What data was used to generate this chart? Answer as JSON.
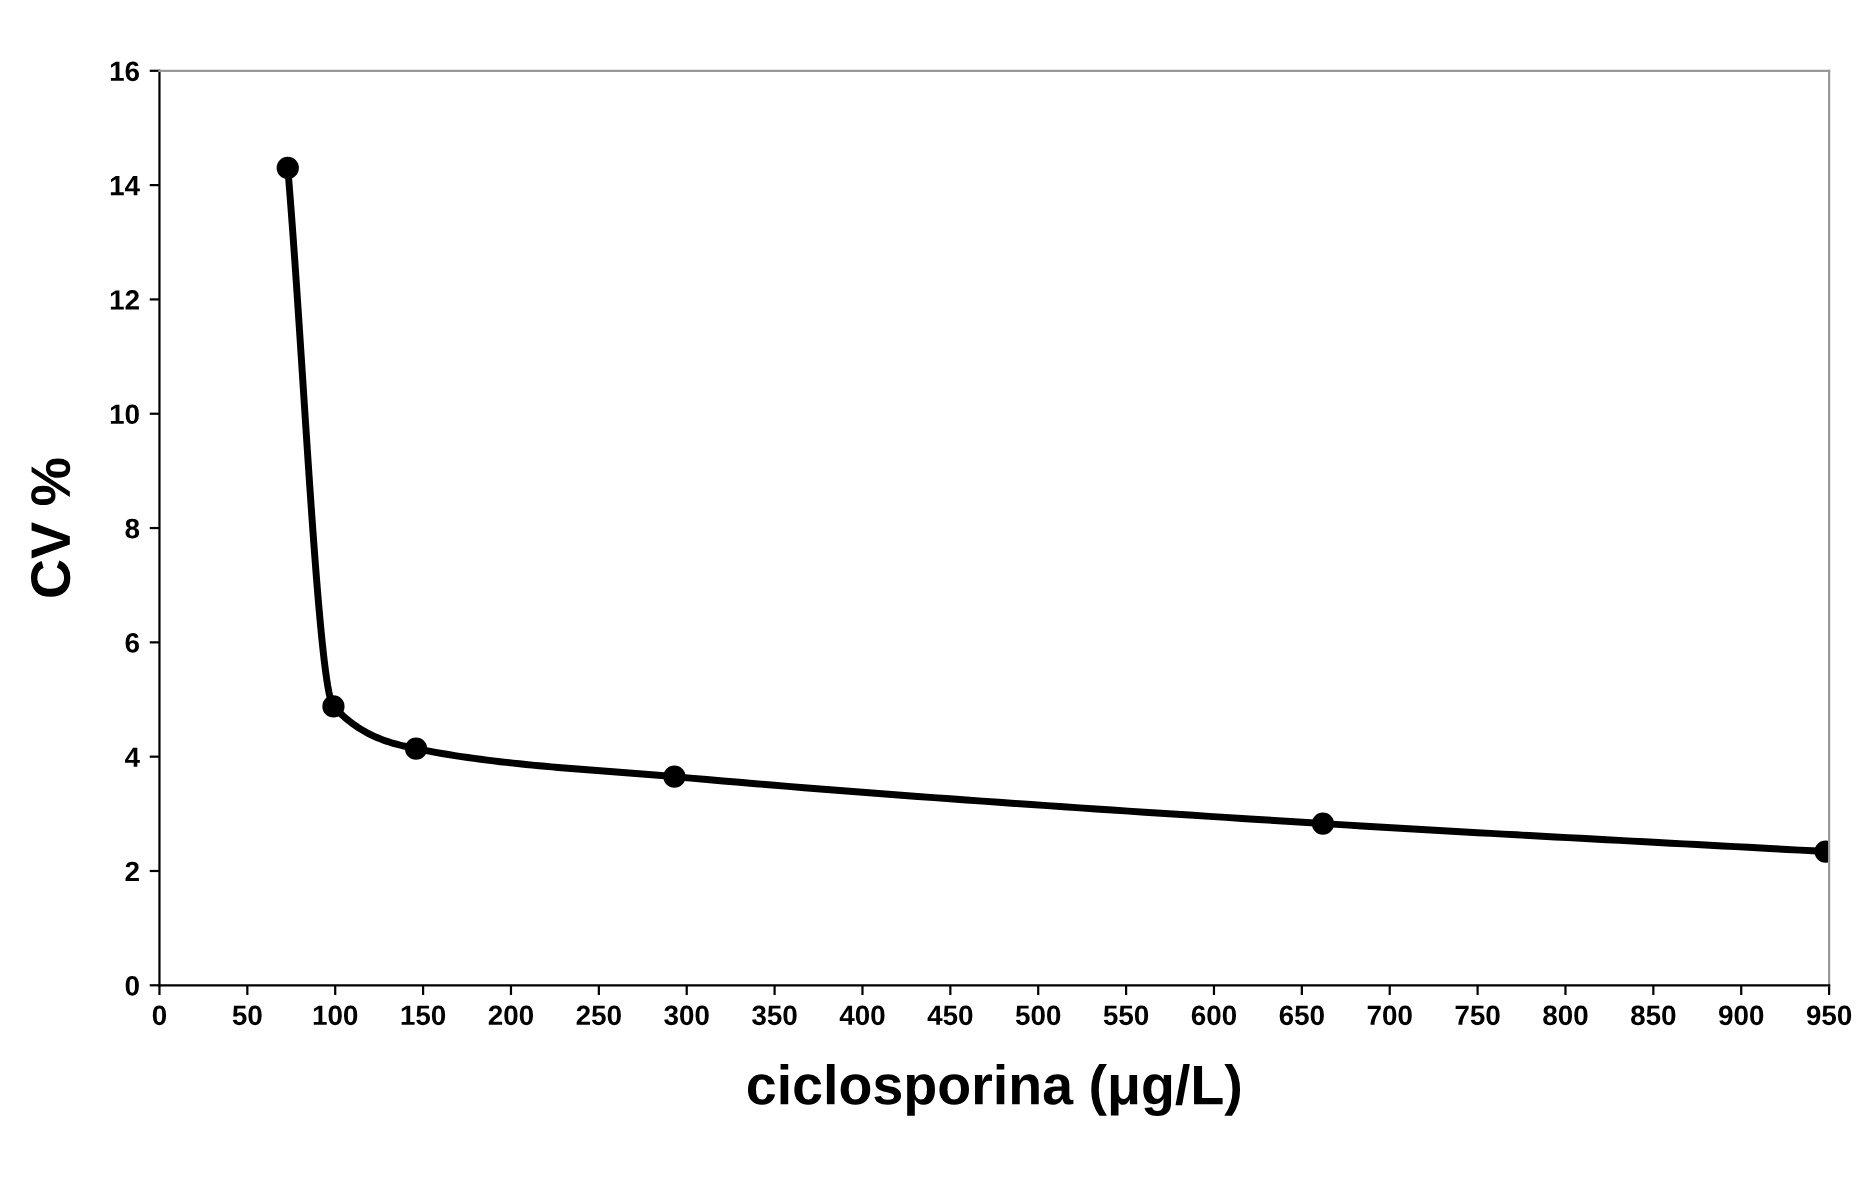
{
  "chart_data": {
    "type": "line",
    "xlabel": "ciclosporina (μg/L)",
    "ylabel": "CV %",
    "x": [
      73,
      99,
      146,
      293,
      662,
      948
    ],
    "series": [
      {
        "color": "#000000",
        "values": [
          14.3,
          4.88,
          4.14,
          3.65,
          2.83,
          2.34
        ]
      }
    ],
    "xlim": [
      0,
      950
    ],
    "xticks": [
      0,
      50,
      100,
      150,
      200,
      250,
      300,
      350,
      400,
      450,
      500,
      550,
      600,
      650,
      700,
      750,
      800,
      850,
      900,
      950
    ],
    "ylim": [
      0,
      16
    ],
    "yticks": [
      0,
      2,
      4,
      6,
      8,
      10,
      12,
      14,
      16
    ],
    "grid": false,
    "marker": "circle",
    "line_style": "solid"
  }
}
